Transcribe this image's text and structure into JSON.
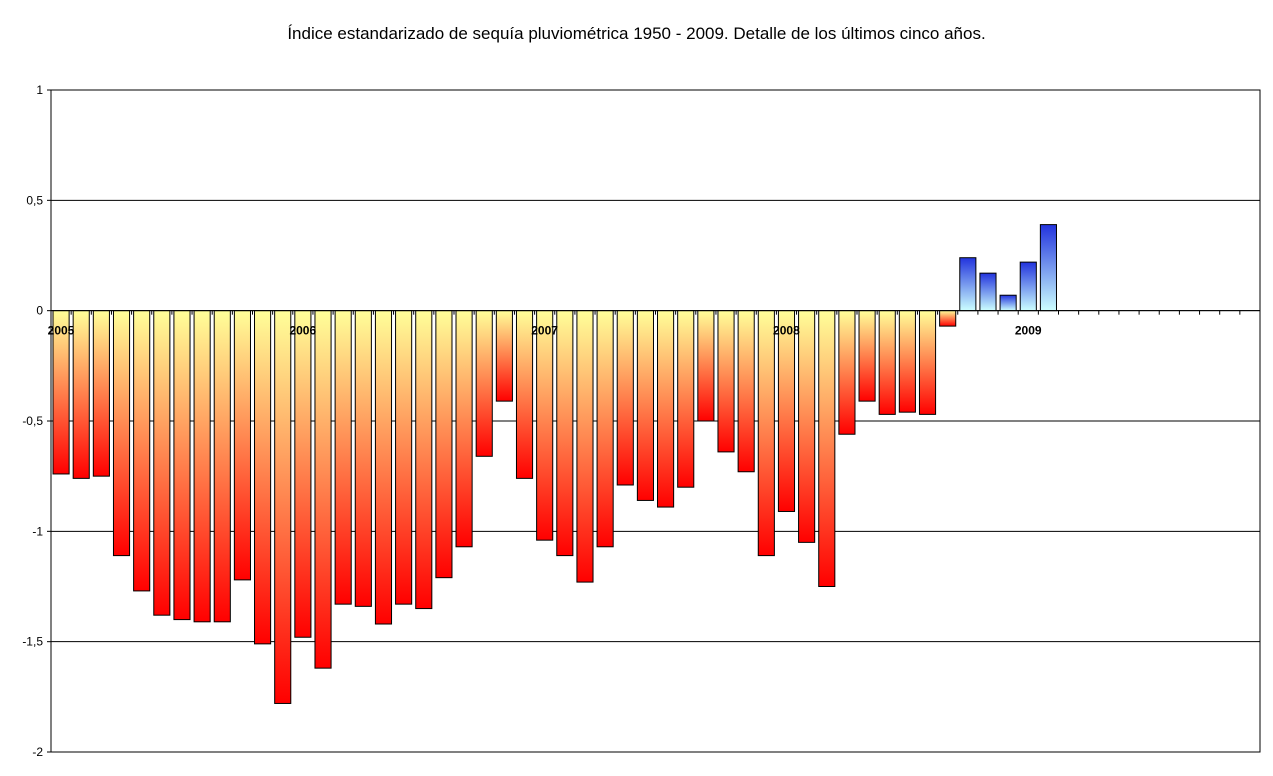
{
  "chart_data": {
    "type": "bar",
    "title": "Índice estandarizado de sequía pluviométrica 1950 - 2009. Detalle de los últimos cinco años.",
    "xlabel": "",
    "ylabel": "",
    "ylim": [
      -2,
      1
    ],
    "yticks": [
      1,
      0.5,
      0,
      -0.5,
      -1,
      -1.5,
      -2
    ],
    "ytick_labels": [
      "1",
      "0,5",
      "0",
      "-0,5",
      "-1",
      "-1,5",
      "-2"
    ],
    "grid": true,
    "year_labels": [
      {
        "label": "2005",
        "month_index": 0
      },
      {
        "label": "2006",
        "month_index": 12
      },
      {
        "label": "2007",
        "month_index": 24
      },
      {
        "label": "2008",
        "month_index": 36
      },
      {
        "label": "2009",
        "month_index": 48
      }
    ],
    "months_total": 60,
    "values": [
      -0.74,
      -0.76,
      -0.75,
      -1.11,
      -1.27,
      -1.38,
      -1.4,
      -1.41,
      -1.41,
      -1.22,
      -1.51,
      -1.78,
      -1.48,
      -1.62,
      -1.33,
      -1.34,
      -1.42,
      -1.33,
      -1.35,
      -1.21,
      -1.07,
      -0.66,
      -0.41,
      -0.76,
      -1.04,
      -1.11,
      -1.23,
      -1.07,
      -0.79,
      -0.86,
      -0.89,
      -0.8,
      -0.5,
      -0.64,
      -0.73,
      -1.11,
      -0.91,
      -1.05,
      -1.25,
      -0.56,
      -0.41,
      -0.47,
      -0.46,
      -0.47,
      -0.07,
      0.24,
      0.17,
      0.07,
      0.22,
      0.39
    ],
    "colors": {
      "negative_top": "#ffff99",
      "negative_bottom": "#ff0000",
      "positive_top": "#2233dd",
      "positive_bottom": "#ccffff",
      "bar_stroke": "#000000",
      "grid": "#000000"
    }
  }
}
